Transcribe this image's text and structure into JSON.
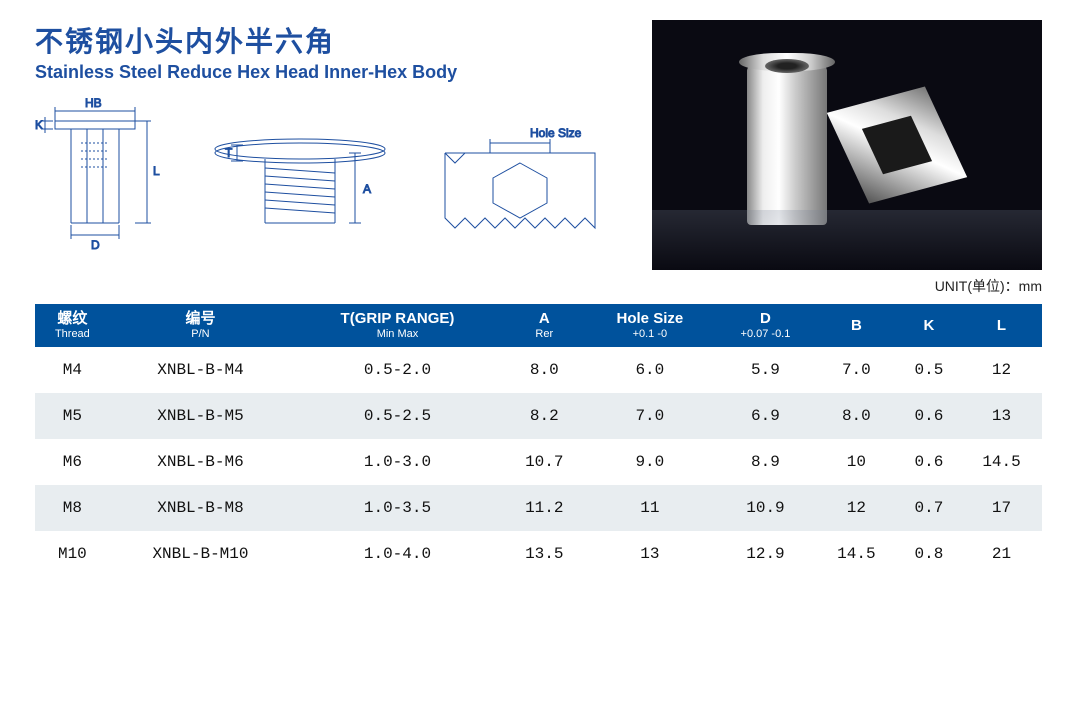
{
  "title_cn": "不锈钢小头内外半六角",
  "title_en": "Stainless Steel Reduce Hex Head Inner-Hex Body",
  "unit_label": "UNIT(单位)：mm",
  "diagram_labels": {
    "hb": "HB",
    "k": "K",
    "d": "D",
    "l": "L",
    "t": "T",
    "a": "A",
    "hole": "Hole Size"
  },
  "table": {
    "header_bg": "#00529c",
    "header_fg": "#ffffff",
    "alt_row_bg": "#e8edf0",
    "columns": [
      {
        "cn": "螺纹",
        "en": "Thread"
      },
      {
        "cn": "编号",
        "en": "P/N"
      },
      {
        "main": "T(GRIP RANGE)",
        "sub": "Min Max"
      },
      {
        "main": "A",
        "sub": "Rer"
      },
      {
        "main": "Hole Size",
        "sub": "+0.1\n-0"
      },
      {
        "main": "D",
        "sub": "+0.07\n-0.1"
      },
      {
        "main": "B",
        "sub": ""
      },
      {
        "main": "K",
        "sub": ""
      },
      {
        "main": "L",
        "sub": ""
      }
    ],
    "rows": [
      {
        "thread": "M4",
        "pn": "XNBL-B-M4",
        "t": "0.5-2.0",
        "a": "8.0",
        "hole": "6.0",
        "d": "5.9",
        "b": "7.0",
        "k": "0.5",
        "l": "12"
      },
      {
        "thread": "M5",
        "pn": "XNBL-B-M5",
        "t": "0.5-2.5",
        "a": "8.2",
        "hole": "7.0",
        "d": "6.9",
        "b": "8.0",
        "k": "0.6",
        "l": "13"
      },
      {
        "thread": "M6",
        "pn": "XNBL-B-M6",
        "t": "1.0-3.0",
        "a": "10.7",
        "hole": "9.0",
        "d": "8.9",
        "b": "10",
        "k": "0.6",
        "l": "14.5"
      },
      {
        "thread": "M8",
        "pn": "XNBL-B-M8",
        "t": "1.0-3.5",
        "a": "11.2",
        "hole": "11",
        "d": "10.9",
        "b": "12",
        "k": "0.7",
        "l": "17"
      },
      {
        "thread": "M10",
        "pn": "XNBL-B-M10",
        "t": "1.0-4.0",
        "a": "13.5",
        "hole": "13",
        "d": "12.9",
        "b": "14.5",
        "k": "0.8",
        "l": "21"
      }
    ]
  }
}
